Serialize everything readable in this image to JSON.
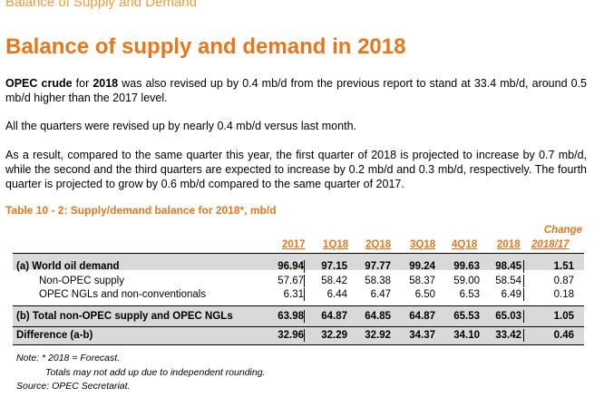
{
  "running_header": "Balance of Supply and Demand",
  "title": "Balance of supply and demand in 2018",
  "para1": {
    "b1": "OPEC crude",
    "t1": " for ",
    "b2": "2018",
    "t2": " was also revised up by 0.4 mb/d from the previous report to stand at 33.4 mb/d, around 0.5 mb/d higher than the 2017 level."
  },
  "para2": "All the quarters were revised up by nearly 0.4 mb/d versus last month.",
  "para3": "As a result, compared to the same quarter this year, the first quarter of 2018 is projected to increase by 0.7 mb/d, while the second and the third quarters are expected to increase by 0.2 mb/d and 0.3 mb/d, respectively. The fourth quarter is projected to grow by 0.6 mb/d compared to the same quarter of 2017.",
  "table": {
    "caption": "Table 10 - 2: Supply/demand balance for 2018*, mb/d",
    "change_label": "Change",
    "headers": [
      "2017",
      "1Q18",
      "2Q18",
      "3Q18",
      "4Q18",
      "2018",
      "2018/17"
    ],
    "rows": [
      {
        "label": "(a) World oil demand",
        "values": [
          "96.94",
          "97.15",
          "97.77",
          "99.24",
          "99.63",
          "98.45",
          "1.51"
        ]
      },
      {
        "label": "Non-OPEC supply",
        "values": [
          "57.67",
          "58.42",
          "58.38",
          "58.37",
          "59.00",
          "58.54",
          "0.87"
        ]
      },
      {
        "label": "OPEC NGLs and non-conventionals",
        "values": [
          "6.31",
          "6.44",
          "6.47",
          "6.50",
          "6.53",
          "6.49",
          "0.18"
        ]
      },
      {
        "label": "(b) Total non-OPEC supply and OPEC NGLs",
        "values": [
          "63.98",
          "64.87",
          "64.85",
          "64.87",
          "65.53",
          "65.03",
          "1.05"
        ]
      },
      {
        "label": "Difference (a-b)",
        "values": [
          "32.96",
          "32.29",
          "32.92",
          "34.37",
          "34.10",
          "33.42",
          "0.46"
        ]
      }
    ]
  },
  "notes": {
    "note1": "Note: * 2018 = Forecast.",
    "note2": "Totals may not add up due to independent rounding.",
    "source": "Source: OPEC Secretariat."
  }
}
